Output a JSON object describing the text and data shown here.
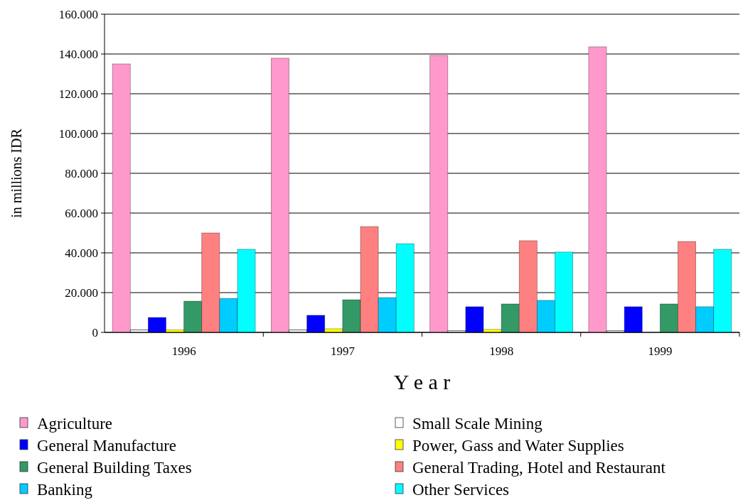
{
  "chart_data": {
    "type": "bar",
    "xlabel": "Y e a r",
    "ylabel": "in millions IDR",
    "categories": [
      "1996",
      "1997",
      "1998",
      "1999"
    ],
    "series": [
      {
        "name": "Agriculture",
        "color": "#ff99cc",
        "values": [
          135000,
          137900,
          139300,
          143600
        ]
      },
      {
        "name": "Small Scale Mining",
        "color": "#ffffff",
        "values": [
          1200,
          1200,
          800,
          800
        ]
      },
      {
        "name": "General Manufacture",
        "color": "#0000ff",
        "values": [
          7500,
          8600,
          12900,
          12900
        ]
      },
      {
        "name": "Power, Gass and Water Supplies",
        "color": "#ffff00",
        "values": [
          1300,
          1800,
          1500,
          0
        ]
      },
      {
        "name": "General Building Taxes",
        "color": "#339966",
        "values": [
          15700,
          16400,
          14300,
          14300
        ]
      },
      {
        "name": "General Trading, Hotel and Restaurant",
        "color": "#ff8080",
        "values": [
          50000,
          53200,
          46100,
          45700
        ]
      },
      {
        "name": "Banking",
        "color": "#00ccff",
        "values": [
          17100,
          17500,
          16100,
          12900
        ]
      },
      {
        "name": "Other Services",
        "color": "#00ffff",
        "values": [
          41800,
          44600,
          40400,
          41800
        ]
      }
    ],
    "ylim": [
      0,
      160000
    ],
    "yticks": [
      {
        "value": 0,
        "label": "0"
      },
      {
        "value": 20000,
        "label": "20.000"
      },
      {
        "value": 40000,
        "label": "40.000"
      },
      {
        "value": 60000,
        "label": "60.000"
      },
      {
        "value": 80000,
        "label": "80.000"
      },
      {
        "value": 100000,
        "label": "100.000"
      },
      {
        "value": 120000,
        "label": "120.000"
      },
      {
        "value": 140000,
        "label": "140.000"
      },
      {
        "value": 160000,
        "label": "160.000"
      }
    ],
    "grid": "y",
    "legend": "bottom"
  }
}
